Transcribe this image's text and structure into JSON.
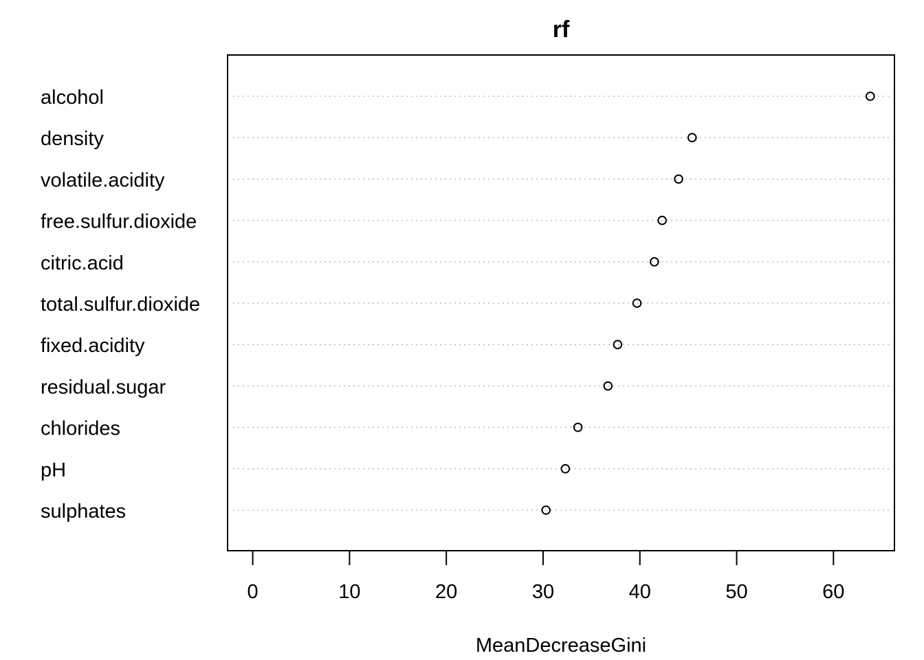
{
  "chart_data": {
    "type": "scatter",
    "title": "rf",
    "xlabel": "MeanDecreaseGini",
    "ylabel": "",
    "categories": [
      "alcohol",
      "density",
      "volatile.acidity",
      "free.sulfur.dioxide",
      "citric.acid",
      "total.sulfur.dioxide",
      "fixed.acidity",
      "residual.sugar",
      "chlorides",
      "pH",
      "sulphates"
    ],
    "values": [
      63.8,
      45.4,
      44.0,
      42.3,
      41.5,
      39.7,
      37.7,
      36.7,
      33.6,
      32.3,
      30.3
    ],
    "xticks": [
      0,
      10,
      20,
      30,
      40,
      50,
      60
    ],
    "xlim": [
      -2.6,
      66.3
    ],
    "grid": "dotted horizontal",
    "legend": "none"
  }
}
